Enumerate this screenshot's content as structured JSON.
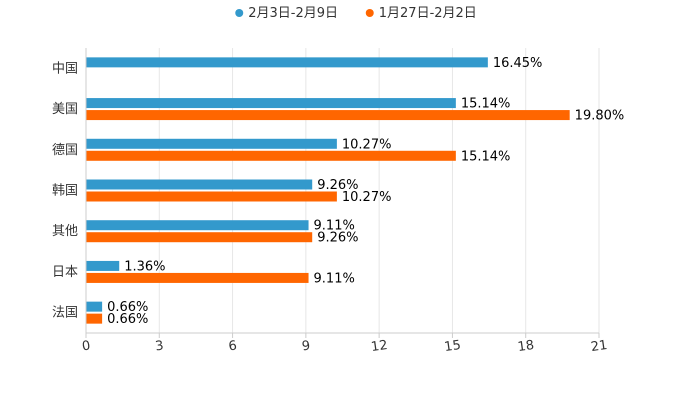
{
  "chart_data": {
    "type": "bar",
    "orientation": "horizontal",
    "title": "",
    "xlabel": "",
    "ylabel": "",
    "xlim": [
      0,
      21
    ],
    "xticks": [
      0,
      3,
      6,
      9,
      12,
      15,
      18,
      21
    ],
    "xtick_labels": [
      "0",
      "3",
      "6",
      "9",
      "12",
      "15",
      "18",
      "21"
    ],
    "categories": [
      "中国",
      "美国",
      "德国",
      "韩国",
      "其他",
      "日本",
      "法国"
    ],
    "series": [
      {
        "name": "2月3日-2月9日",
        "color": "#3399cc",
        "values": [
          16.45,
          15.14,
          10.27,
          9.26,
          9.11,
          1.36,
          0.66
        ],
        "labels": [
          "16.45%",
          "15.14%",
          "10.27%",
          "9.26%",
          "9.11%",
          "1.36%",
          "0.66%"
        ]
      },
      {
        "name": "1月27日-2月2日",
        "color": "#ff6600",
        "values": [
          null,
          19.8,
          15.14,
          10.27,
          9.26,
          9.11,
          0.66
        ],
        "labels": [
          null,
          "19.80%",
          "15.14%",
          "10.27%",
          "9.26%",
          "9.11%",
          "0.66%"
        ]
      }
    ],
    "legend_position": "top-center",
    "grid": true
  }
}
